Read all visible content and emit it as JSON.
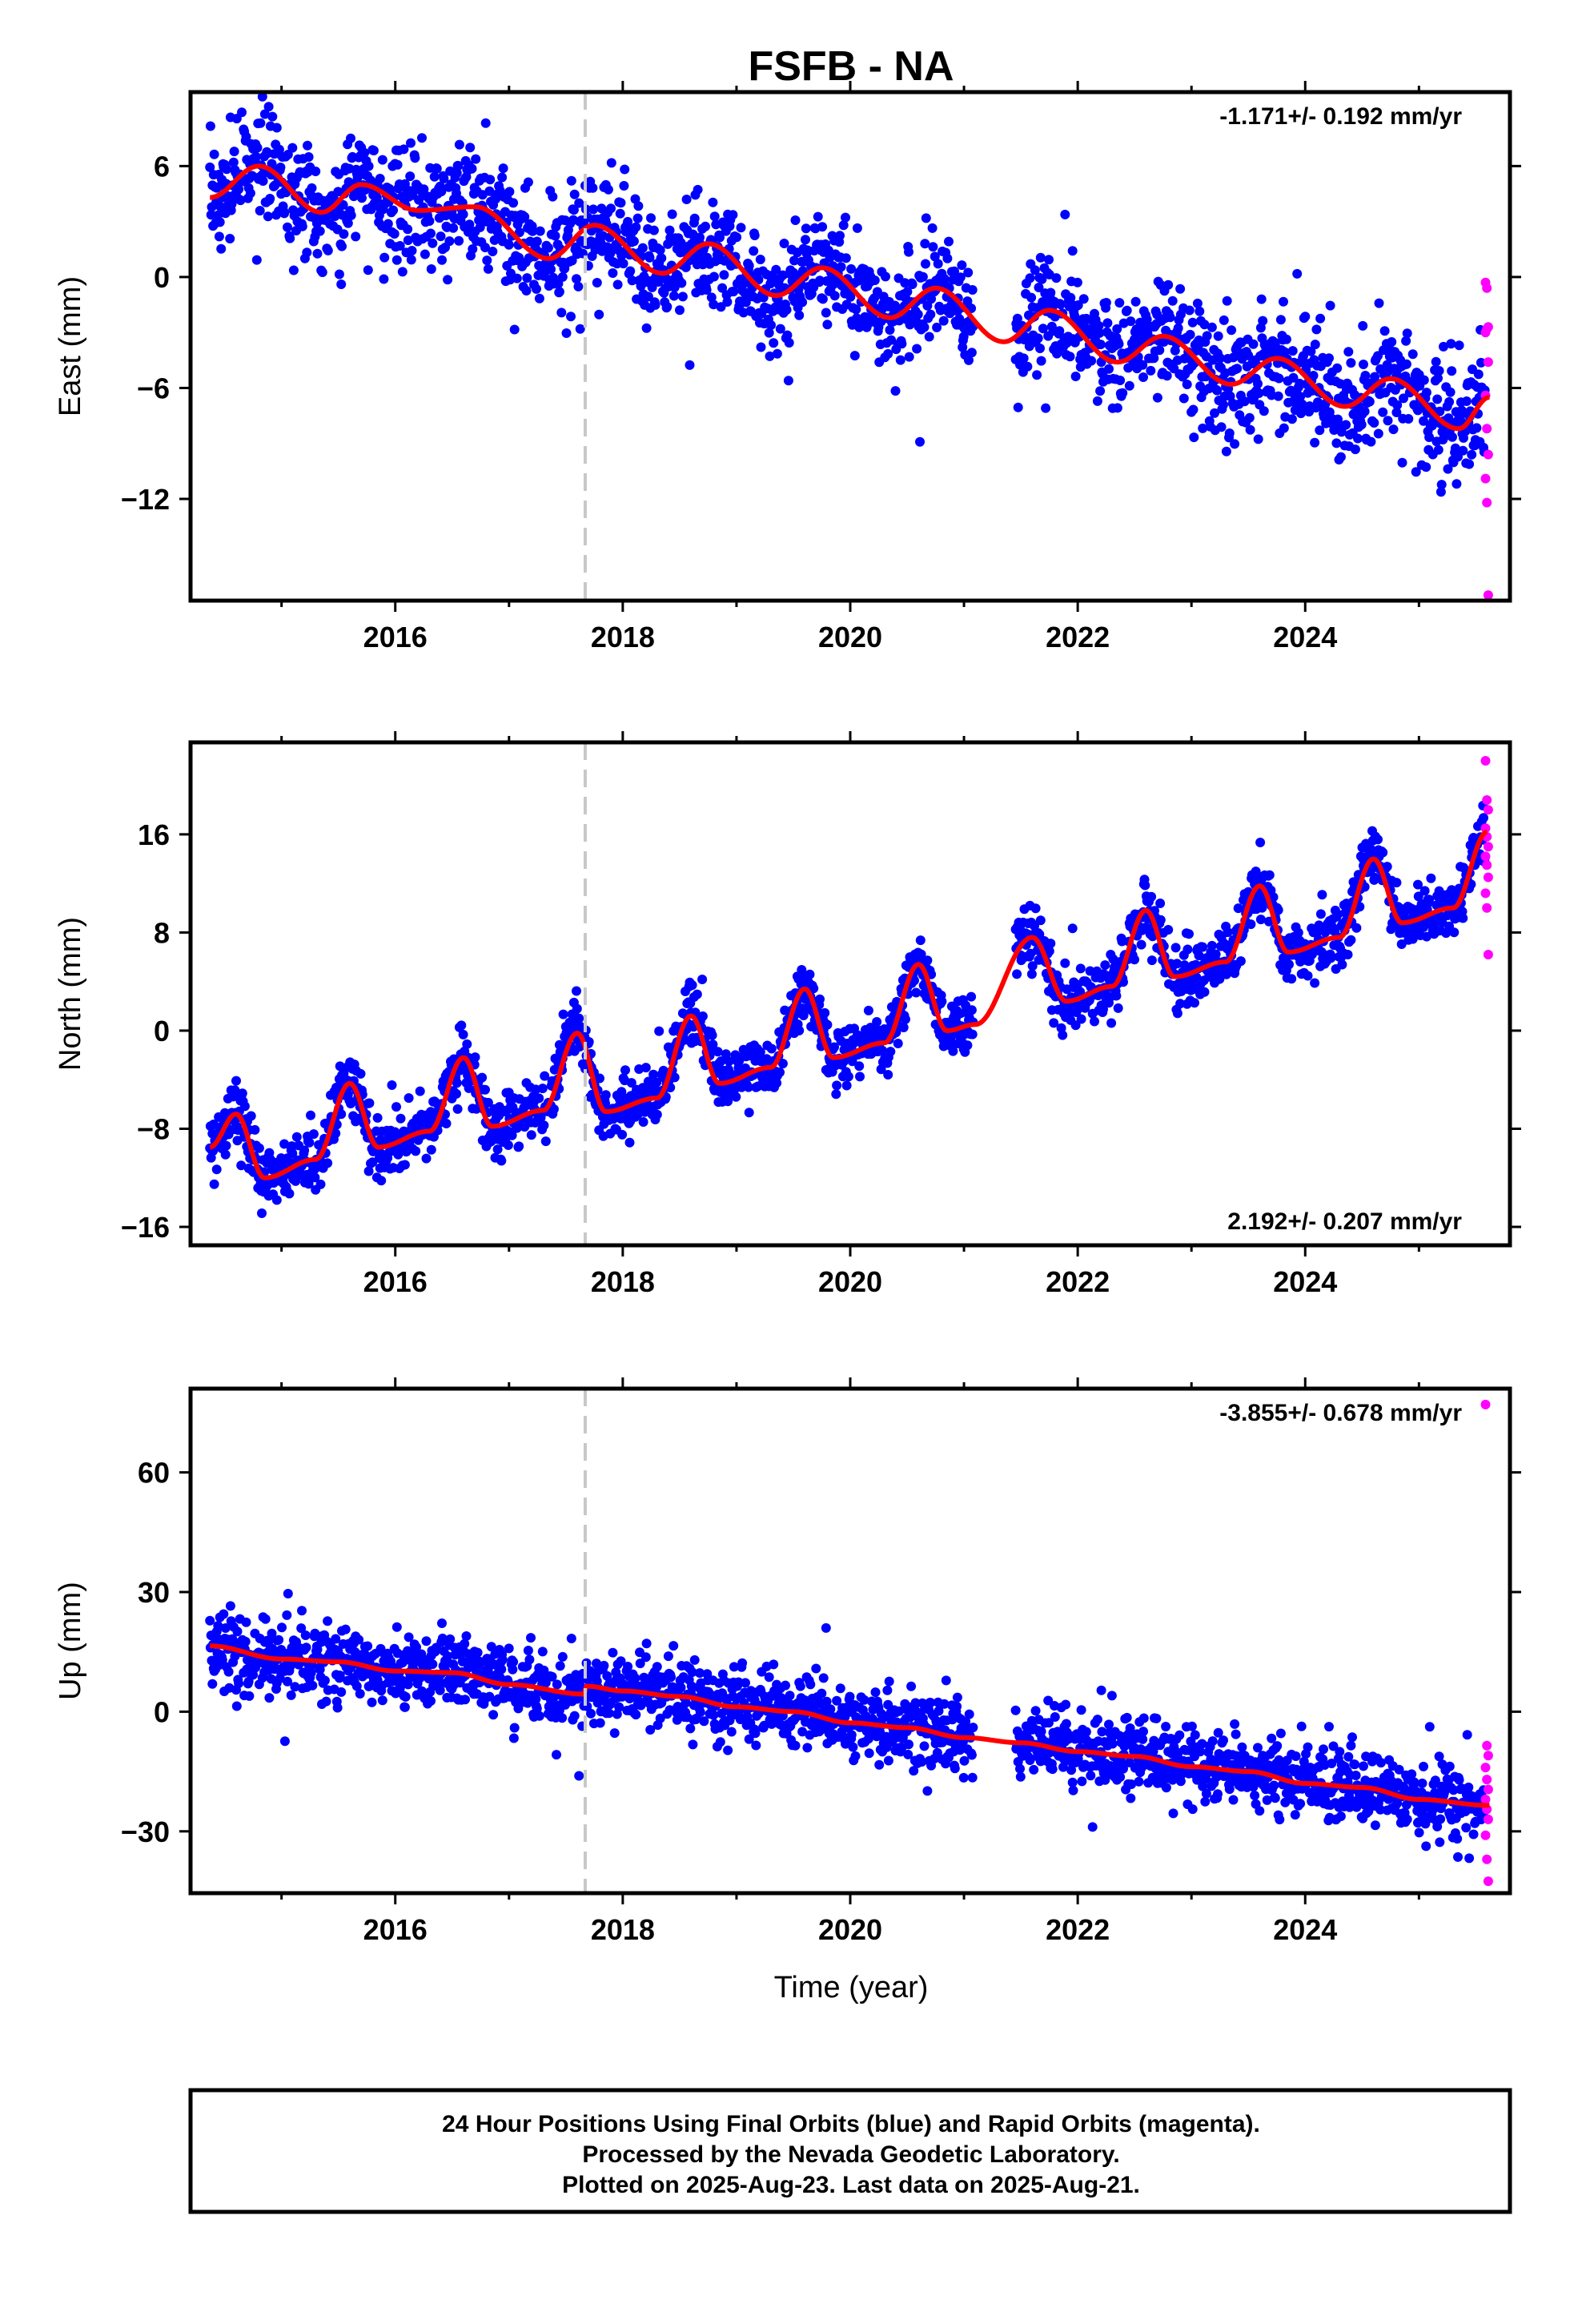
{
  "title": "FSFB - NA",
  "x_axis_label": "Time (year)",
  "x_tick_labels": [
    "2016",
    "2018",
    "2020",
    "2022",
    "2024"
  ],
  "caption": {
    "line1": "24 Hour Positions Using Final Orbits (blue) and Rapid Orbits (magenta).",
    "line2": "Processed by the Nevada Geodetic Laboratory.",
    "line3": "Plotted on 2025-Aug-23. Last data on 2025-Aug-21."
  },
  "colors": {
    "final_orbits": "#0000ff",
    "rapid_orbits": "#ff00ff",
    "model_fit": "#ff0000",
    "event_line": "#c8c8c8"
  },
  "chart_data": [
    {
      "type": "scatter",
      "component": "east",
      "ylabel": "East (mm)",
      "xlim": [
        2014.2,
        2025.8
      ],
      "ylim": [
        -17.5,
        10
      ],
      "yticks": [
        6,
        0,
        -6,
        -12
      ],
      "ytick_labels": [
        "6",
        "0",
        "−6",
        "−12"
      ],
      "rate_text": "-1.171+/- 0.192 mm/yr",
      "rate_position": "top-right",
      "event_line_x": 2017.67,
      "model": {
        "trend_at_2020": 0.4,
        "rate_mm_per_yr": -1.171,
        "annual_sin": 1.3,
        "annual_cos": -0.1,
        "semiannual_sin": 0.3,
        "semiannual_cos": 0.0,
        "offset_at_event": 0
      },
      "scatter_sigma": 1.5,
      "anchors": [
        [
          2014.37,
          4.3
        ],
        [
          2014.8,
          6.0
        ],
        [
          2015.35,
          3.5
        ],
        [
          2015.7,
          5.0
        ],
        [
          2016.2,
          3.6
        ],
        [
          2016.7,
          3.8
        ],
        [
          2017.35,
          1.0
        ],
        [
          2017.75,
          2.8
        ],
        [
          2018.35,
          0.2
        ],
        [
          2018.75,
          1.8
        ],
        [
          2019.35,
          -1.0
        ],
        [
          2019.75,
          0.5
        ],
        [
          2020.35,
          -2.2
        ],
        [
          2020.75,
          -0.6
        ],
        [
          2021.35,
          -3.5
        ],
        [
          2021.75,
          -1.8
        ],
        [
          2022.35,
          -4.6
        ],
        [
          2022.75,
          -3.2
        ],
        [
          2023.35,
          -5.8
        ],
        [
          2023.75,
          -4.4
        ],
        [
          2024.35,
          -7.0
        ],
        [
          2024.75,
          -5.5
        ],
        [
          2025.35,
          -8.2
        ],
        [
          2025.62,
          -6.5
        ]
      ],
      "rapid_orbits": [
        -0.3,
        -0.6,
        -2.7,
        -3.0,
        -2.8,
        -4.6,
        -6.4,
        -8.2,
        -9.6,
        -10.9,
        -12.2,
        -17.2
      ]
    },
    {
      "type": "scatter",
      "component": "north",
      "ylabel": "North (mm)",
      "xlim": [
        2014.2,
        2025.8
      ],
      "ylim": [
        -17.5,
        23.5
      ],
      "yticks": [
        16,
        8,
        0,
        -8,
        -16
      ],
      "ytick_labels": [
        "16",
        "8",
        "0",
        "−8",
        "−16"
      ],
      "rate_text": "2.192+/- 0.207 mm/yr",
      "rate_position": "bottom-right",
      "event_line_x": 2017.67,
      "model": {
        "trend_at_2020": 1.5,
        "rate_mm_per_yr": 2.192,
        "annual_sin": 2.0,
        "annual_cos": -4.4,
        "semiannual_sin": 0.0,
        "semiannual_cos": 0.0,
        "offset_at_event": 0
      },
      "scatter_sigma": 1.2,
      "anchors": [
        [
          2014.37,
          -9.5
        ],
        [
          2014.6,
          -6.8
        ],
        [
          2014.85,
          -12.0
        ],
        [
          2015.3,
          -10.5
        ],
        [
          2015.6,
          -4.3
        ],
        [
          2015.85,
          -9.5
        ],
        [
          2016.3,
          -8.2
        ],
        [
          2016.6,
          -2.2
        ],
        [
          2016.85,
          -7.8
        ],
        [
          2017.3,
          -6.5
        ],
        [
          2017.6,
          -0.2
        ],
        [
          2017.85,
          -6.6
        ],
        [
          2018.3,
          -5.5
        ],
        [
          2018.6,
          1.2
        ],
        [
          2018.85,
          -4.3
        ],
        [
          2019.3,
          -3.0
        ],
        [
          2019.6,
          3.4
        ],
        [
          2019.85,
          -2.2
        ],
        [
          2020.3,
          -1.0
        ],
        [
          2020.6,
          5.4
        ],
        [
          2020.85,
          0.0
        ],
        [
          2021.1,
          0.5
        ],
        [
          2021.6,
          7.6
        ],
        [
          2021.9,
          2.4
        ],
        [
          2022.3,
          3.6
        ],
        [
          2022.6,
          9.8
        ],
        [
          2022.85,
          4.4
        ],
        [
          2023.3,
          5.6
        ],
        [
          2023.6,
          11.8
        ],
        [
          2023.85,
          6.4
        ],
        [
          2024.3,
          7.6
        ],
        [
          2024.6,
          14.0
        ],
        [
          2024.85,
          8.8
        ],
        [
          2025.3,
          10.0
        ],
        [
          2025.6,
          16.2
        ]
      ],
      "rapid_orbits": [
        22.0,
        18.8,
        18.0,
        16.5,
        15.8,
        15.0,
        14.2,
        13.5,
        12.5,
        11.2,
        10.0,
        6.2
      ]
    },
    {
      "type": "scatter",
      "component": "up",
      "ylabel": "Up (mm)",
      "xlim": [
        2014.2,
        2025.8
      ],
      "ylim": [
        -45.5,
        81
      ],
      "yticks": [
        60,
        30,
        0,
        -30
      ],
      "ytick_labels": [
        "60",
        "30",
        "0",
        "−30"
      ],
      "rate_text": "-3.855+/- 0.678 mm/yr",
      "rate_position": "top-right",
      "event_line_x": 2017.67,
      "model": {
        "trend_at_2020": -2.5,
        "rate_mm_per_yr": -3.855,
        "annual_sin": 0.8,
        "annual_cos": 0.4,
        "semiannual_sin": 0.0,
        "semiannual_cos": 0.0,
        "offset_at_event": -2.0
      },
      "scatter_sigma": 4.5,
      "anchors": [
        [
          2014.37,
          16.5
        ],
        [
          2015.0,
          13.2
        ],
        [
          2015.5,
          12.5
        ],
        [
          2016.0,
          10.2
        ],
        [
          2016.5,
          9.8
        ],
        [
          2017.0,
          6.8
        ],
        [
          2017.66,
          4.4
        ],
        [
          2017.68,
          6.4
        ],
        [
          2018.0,
          5.2
        ],
        [
          2018.5,
          3.8
        ],
        [
          2019.0,
          1.2
        ],
        [
          2019.5,
          0.0
        ],
        [
          2020.0,
          -2.8
        ],
        [
          2020.5,
          -4.0
        ],
        [
          2021.0,
          -6.5
        ],
        [
          2021.5,
          -7.8
        ],
        [
          2022.0,
          -10.0
        ],
        [
          2022.5,
          -11.2
        ],
        [
          2023.0,
          -13.8
        ],
        [
          2023.5,
          -15.0
        ],
        [
          2024.0,
          -18.0
        ],
        [
          2024.5,
          -19.0
        ],
        [
          2025.0,
          -22.0
        ],
        [
          2025.62,
          -23.5
        ]
      ],
      "rapid_orbits": [
        77.0,
        -8.5,
        -11.0,
        -14.0,
        -17.0,
        -19.5,
        -22.0,
        -24.5,
        -27.0,
        -31.0,
        -37.0,
        -42.5
      ]
    }
  ]
}
